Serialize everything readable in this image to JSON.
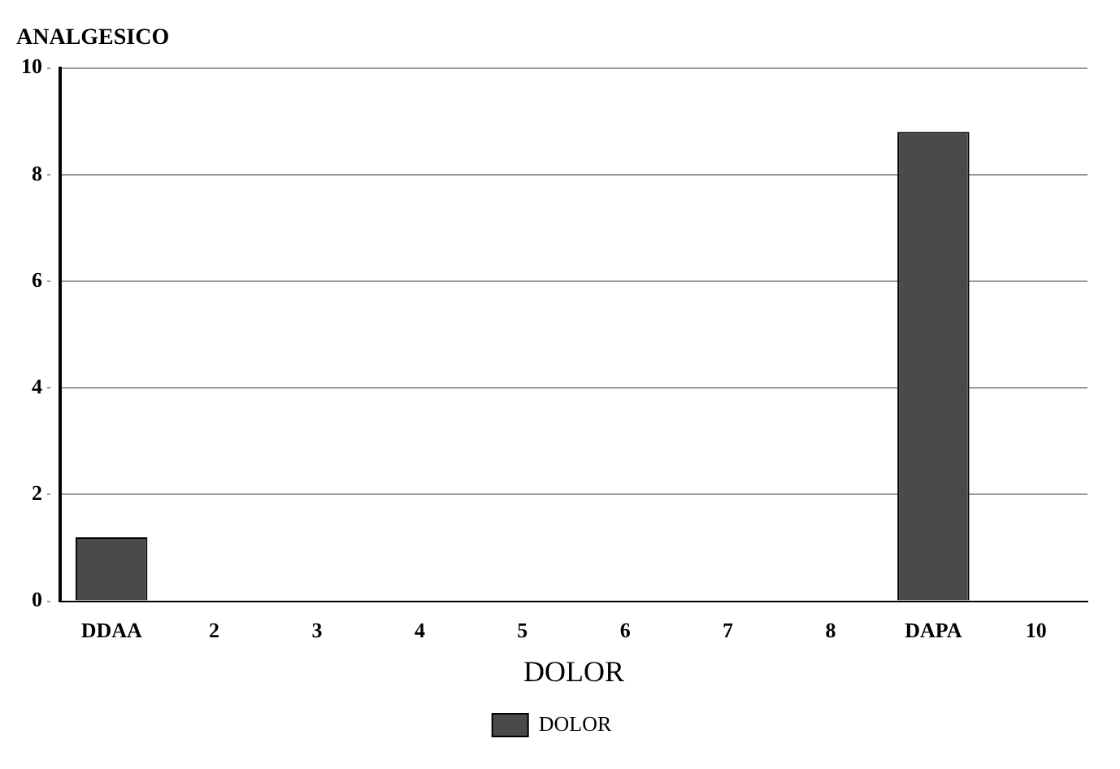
{
  "chart_data": {
    "type": "bar",
    "title": "ANALGESICO",
    "xlabel": "DOLOR",
    "categories": [
      "DDAA",
      "2",
      "3",
      "4",
      "5",
      "6",
      "7",
      "8",
      "DAPA",
      "10"
    ],
    "series": [
      {
        "name": "DOLOR",
        "color": "#4a4a4a",
        "values": [
          1.2,
          0,
          0,
          0,
          0,
          0,
          0,
          0,
          8.8,
          0
        ]
      }
    ],
    "ylim": [
      0,
      10
    ],
    "yticks": [
      0,
      2,
      4,
      6,
      8,
      10
    ],
    "grid": "y",
    "legend": "bottom"
  }
}
